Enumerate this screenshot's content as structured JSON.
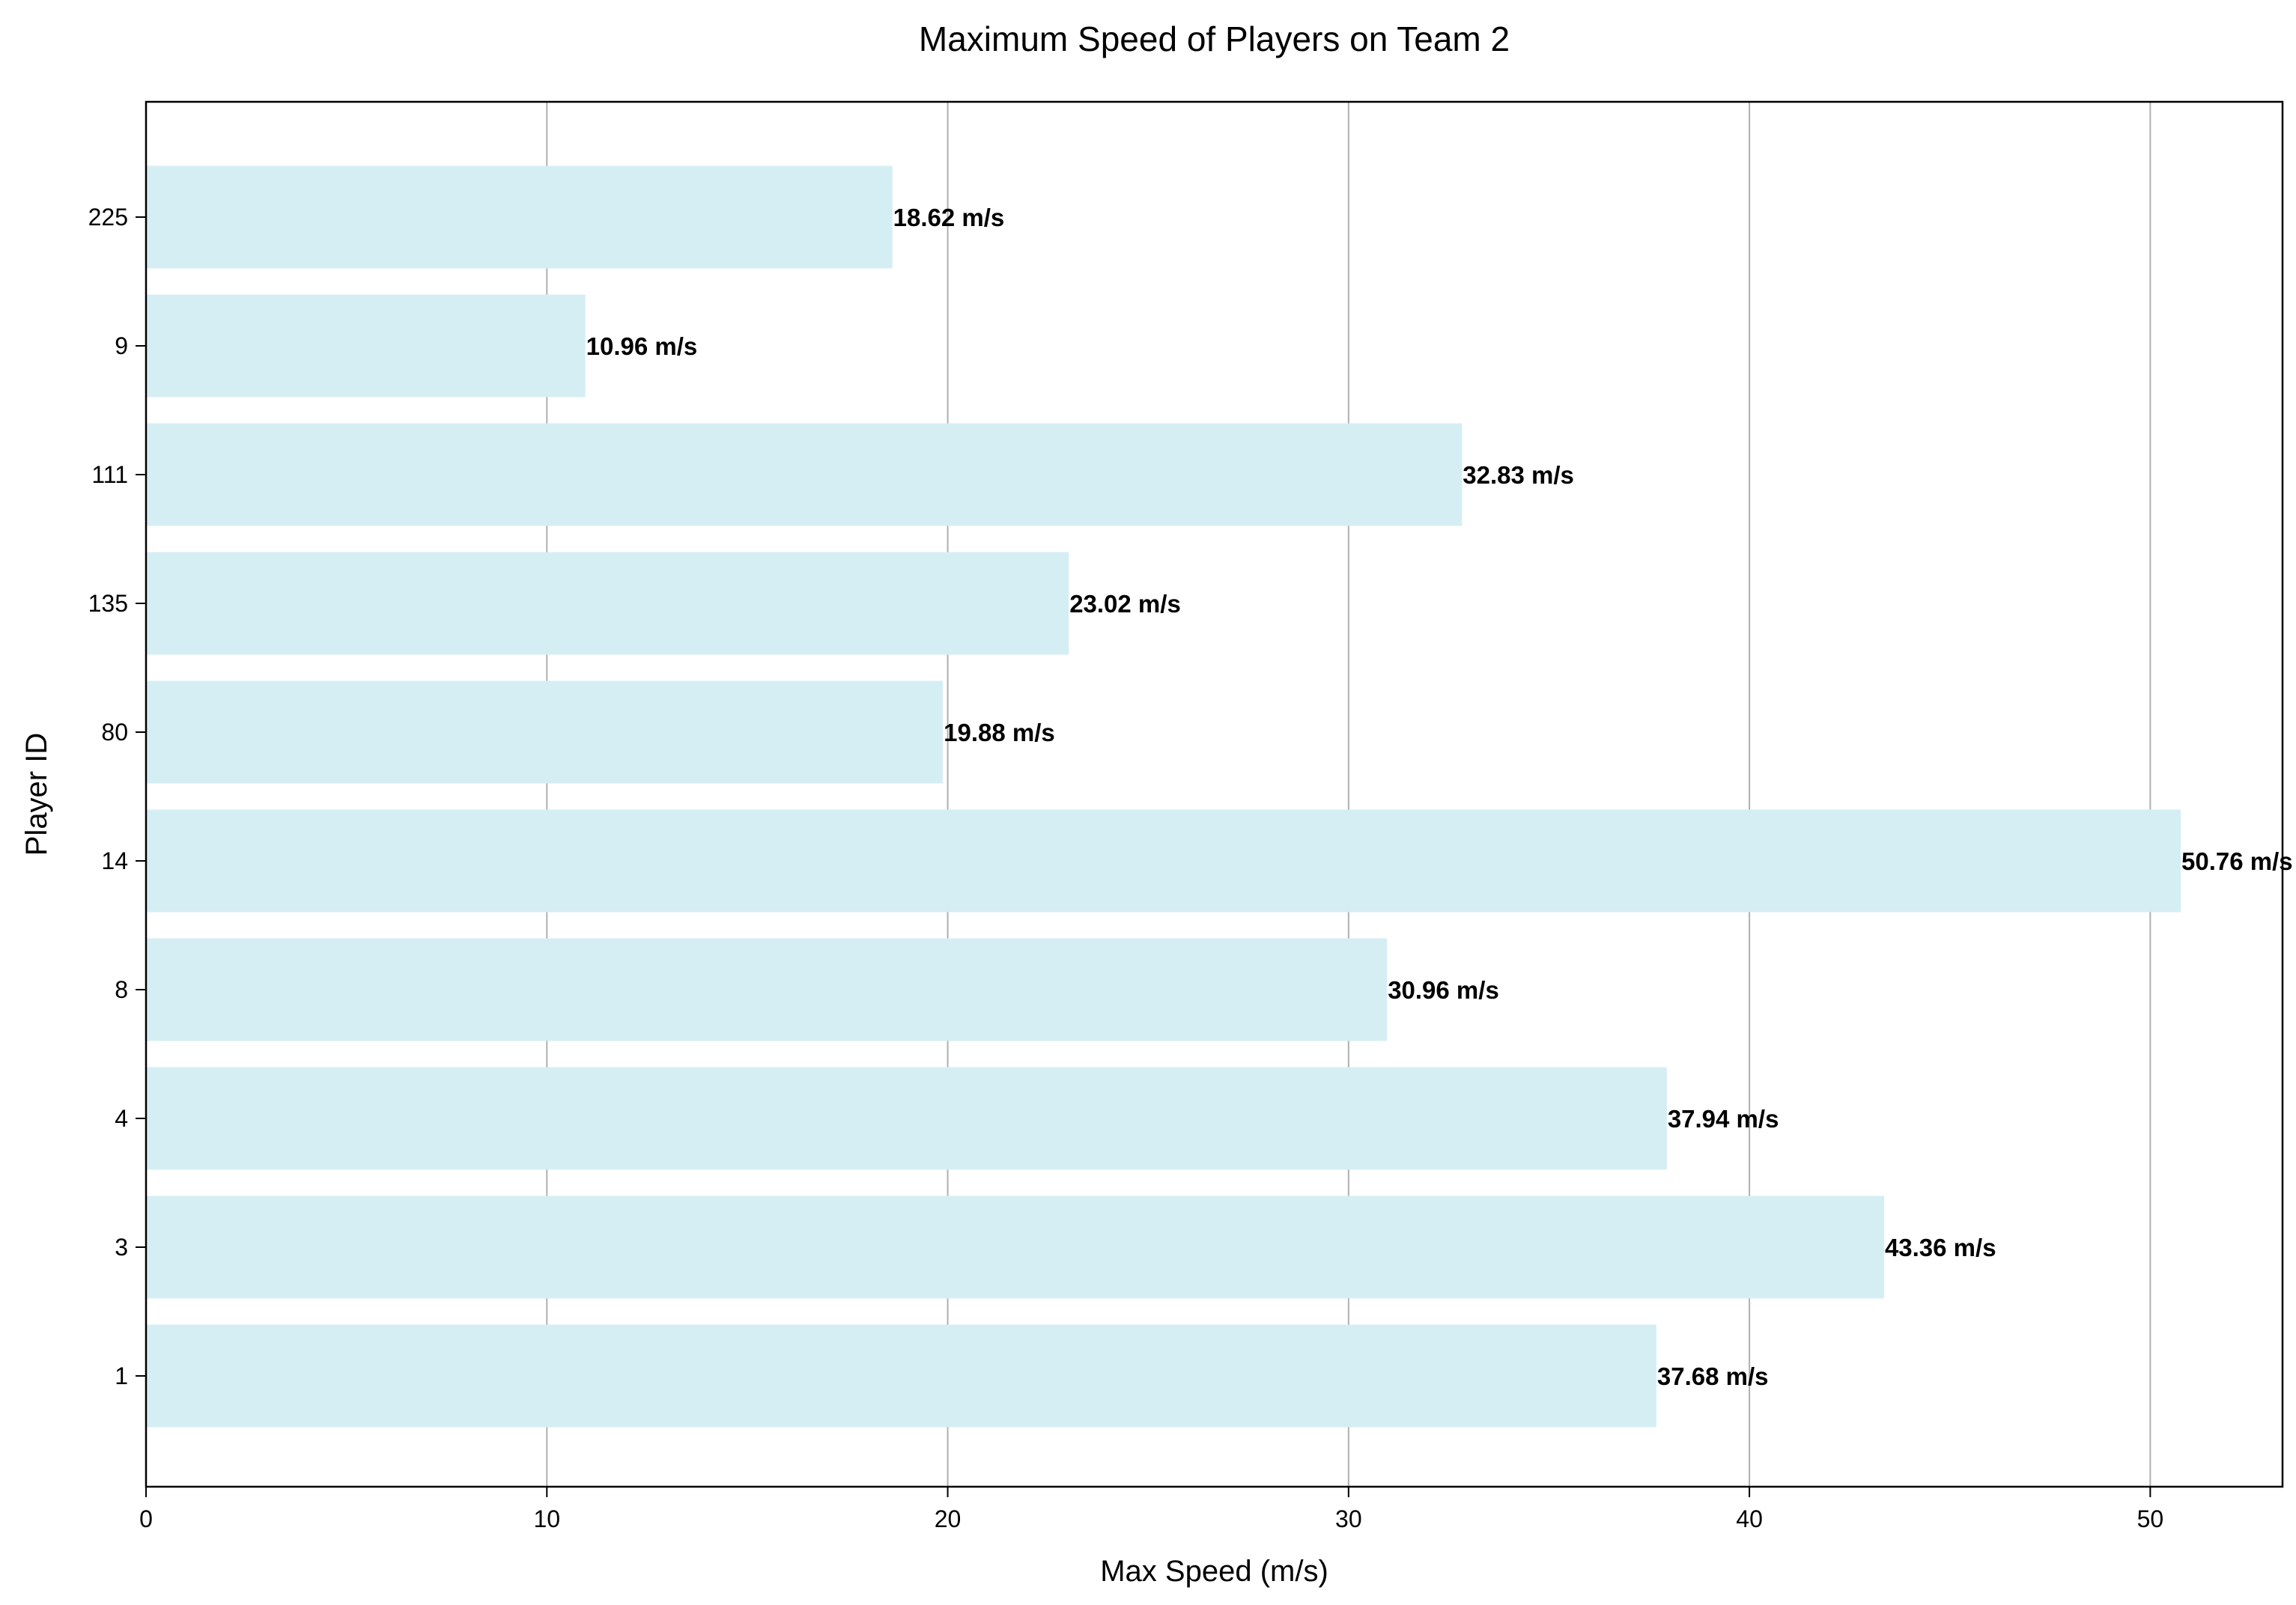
{
  "chart_data": {
    "type": "bar",
    "orientation": "horizontal",
    "title": "Maximum Speed of Players on Team 2",
    "xlabel": "Max Speed (m/s)",
    "ylabel": "Player ID",
    "categories": [
      "1",
      "3",
      "4",
      "8",
      "14",
      "80",
      "135",
      "111",
      "9",
      "225"
    ],
    "values": [
      37.68,
      43.36,
      37.94,
      30.96,
      50.76,
      19.88,
      23.02,
      32.83,
      10.96,
      18.62
    ],
    "data_labels": [
      "37.68 m/s",
      "43.36 m/s",
      "37.94 m/s",
      "30.96 m/s",
      "50.76 m/s",
      "19.88 m/s",
      "23.02 m/s",
      "32.83 m/s",
      "10.96 m/s",
      "18.62 m/s"
    ],
    "xlim": [
      0,
      53.3
    ],
    "xticks": [
      0,
      10,
      20,
      30,
      40,
      50
    ],
    "xtick_labels": [
      "0",
      "10",
      "20",
      "30",
      "40",
      "50"
    ],
    "grid": "vertical",
    "bar_color": "#d5eef3",
    "grid_color": "#b0b0b0"
  }
}
